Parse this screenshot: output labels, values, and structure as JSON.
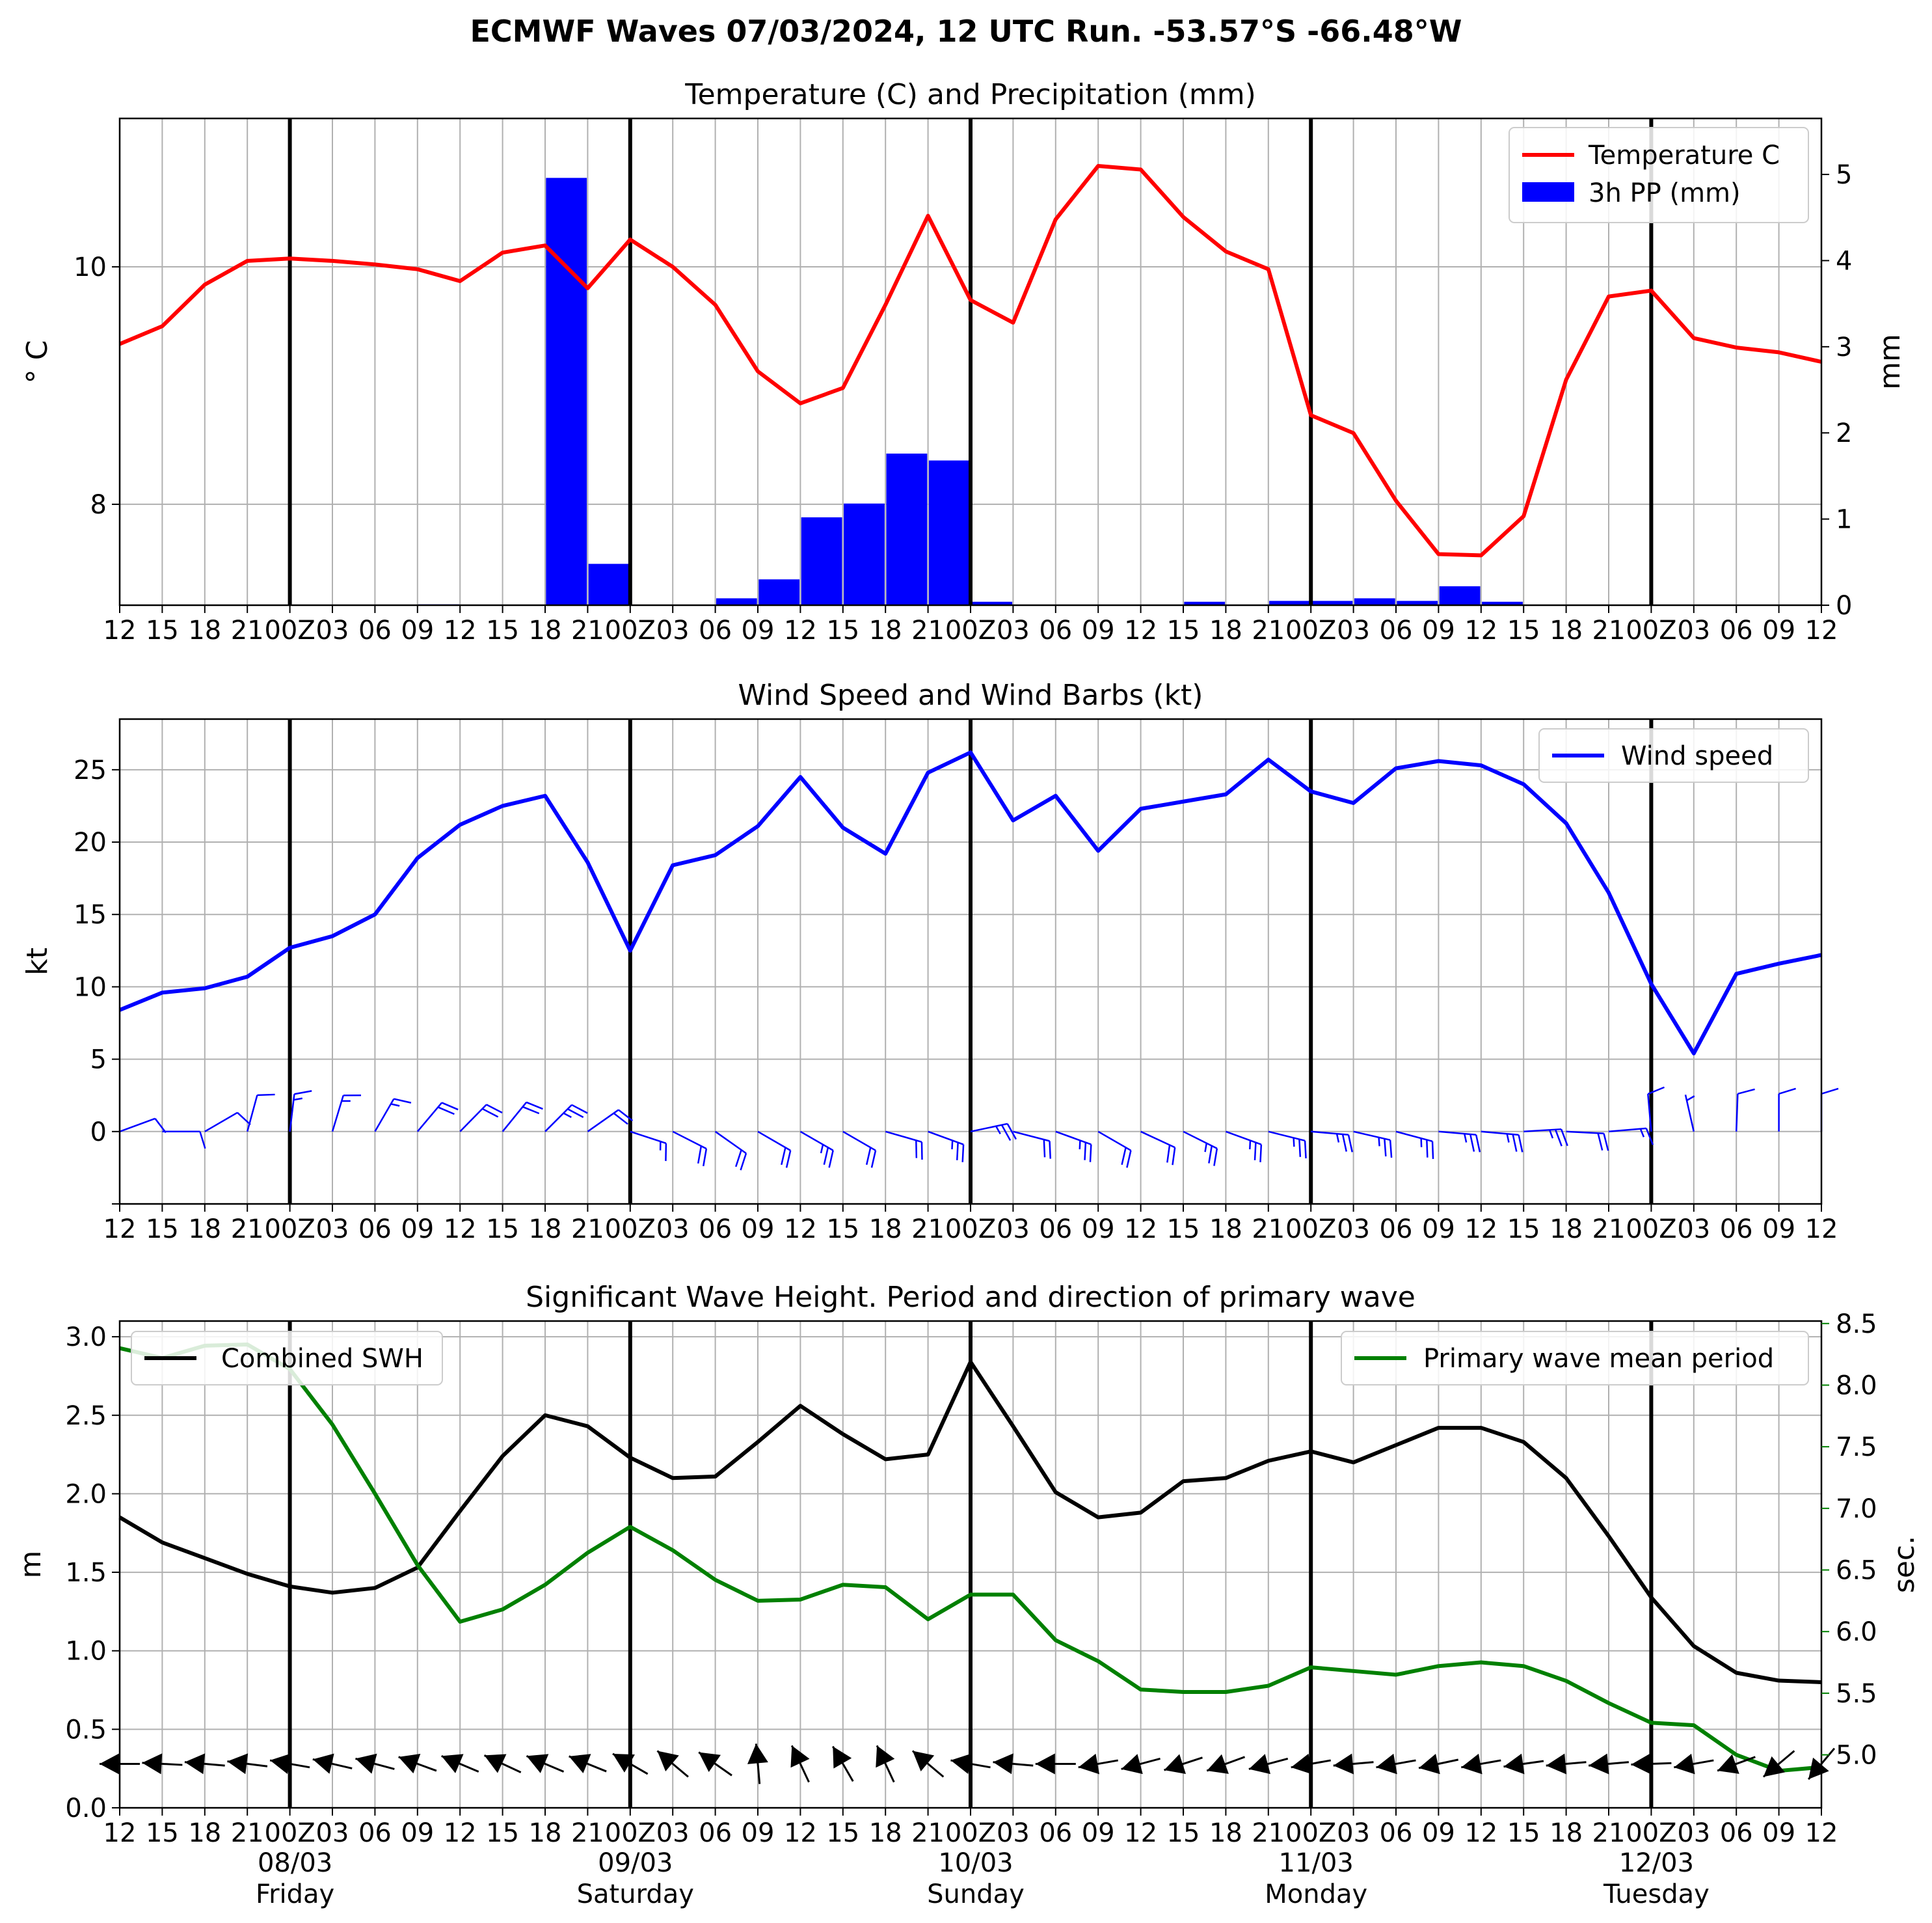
{
  "figure": {
    "suptitle": "ECMWF Waves 07/03/2024, 12 UTC Run. -53.57°S -66.48°W"
  },
  "time_axis": {
    "tick_labels": [
      "12",
      "15",
      "18",
      "21",
      "00Z",
      "03",
      "06",
      "09",
      "12",
      "15",
      "18",
      "21",
      "00Z",
      "03",
      "06",
      "09",
      "12",
      "15",
      "18",
      "21",
      "00Z",
      "03",
      "06",
      "09",
      "12",
      "15",
      "18",
      "21",
      "00Z",
      "03",
      "06",
      "09",
      "12",
      "15",
      "18",
      "21",
      "00Z",
      "03",
      "06",
      "09",
      "12"
    ],
    "day_labels": [
      {
        "date": "08/03",
        "day": "Friday",
        "index": 4
      },
      {
        "date": "09/03",
        "day": "Saturday",
        "index": 12
      },
      {
        "date": "10/03",
        "day": "Sunday",
        "index": 20
      },
      {
        "date": "11/03",
        "day": "Monday",
        "index": 28
      },
      {
        "date": "12/03",
        "day": "Tuesday",
        "index": 36
      }
    ],
    "day_boundaries": [
      4,
      12,
      20,
      28,
      36
    ]
  },
  "chart_data": [
    {
      "type": "line",
      "title": "Temperature (C) and Precipitation (mm)",
      "ylabel": "$^\\circ$C",
      "ylabel_display": "° C",
      "y2label": "mm",
      "ylim": [
        7.15,
        11.25
      ],
      "yticks": [
        8,
        10
      ],
      "y2lim": [
        0,
        5.65
      ],
      "y2ticks": [
        0,
        1,
        2,
        3,
        4,
        5
      ],
      "legend_position": "upper right",
      "series": [
        {
          "name": "Temperature C",
          "kind": "line",
          "axis": "left",
          "color": "#ff0000",
          "values": [
            9.35,
            9.5,
            9.85,
            10.05,
            10.07,
            10.05,
            10.02,
            9.98,
            9.88,
            10.12,
            10.18,
            9.82,
            10.23,
            10.0,
            9.68,
            9.12,
            8.85,
            8.98,
            9.68,
            10.43,
            9.72,
            9.53,
            10.4,
            10.85,
            10.82,
            10.42,
            10.13,
            9.98,
            8.75,
            8.6,
            8.03,
            7.58,
            7.57,
            7.9,
            9.05,
            9.75,
            9.8,
            9.4,
            9.32,
            9.28,
            9.2
          ]
        },
        {
          "name": "3h PP (mm)",
          "kind": "bar",
          "axis": "right",
          "color": "#0000ff",
          "values": [
            0,
            0,
            0,
            0,
            0,
            0,
            0,
            0.01,
            0,
            0,
            4.96,
            0.48,
            0,
            0,
            0.08,
            0.3,
            1.02,
            1.18,
            1.76,
            1.68,
            0.04,
            0,
            0,
            0,
            0,
            0.04,
            0,
            0.05,
            0.05,
            0.08,
            0.05,
            0.22,
            0.04,
            0,
            0,
            0,
            0,
            0,
            0,
            0
          ]
        }
      ]
    },
    {
      "type": "line",
      "title": "Wind Speed and Wind Barbs (kt)",
      "ylabel": "kt",
      "ylim": [
        -5,
        28.5
      ],
      "yticks": [
        0,
        5,
        10,
        15,
        20,
        25
      ],
      "legend_position": "upper right",
      "series": [
        {
          "name": "Wind speed",
          "kind": "line",
          "color": "#0000ff",
          "values": [
            8.4,
            9.6,
            9.9,
            10.7,
            12.7,
            13.5,
            15.0,
            18.9,
            21.2,
            22.5,
            23.2,
            18.6,
            12.5,
            18.4,
            19.1,
            21.1,
            24.5,
            21.0,
            19.2,
            24.8,
            26.2,
            21.5,
            23.2,
            19.4,
            22.3,
            22.8,
            23.3,
            25.7,
            23.5,
            22.7,
            25.1,
            25.6,
            25.3,
            24.0,
            21.3,
            16.5,
            10.2,
            5.4,
            10.9,
            11.6,
            12.2
          ]
        },
        {
          "name": "",
          "kind": "barbs",
          "color": "#0000ff",
          "u": [
            -7.9,
            -9.4,
            -8.6,
            -2.8,
            -1.5,
            -3.9,
            -7.5,
            -12.3,
            -14.9,
            -14.0,
            -16.4,
            -14.8,
            -11.9,
            -16.7,
            -15.6,
            -18.3,
            -21.2,
            -18.2,
            -17.8,
            -23.3,
            -25.6,
            -20.8,
            -21.8,
            -16.8,
            -20.2,
            -20.4,
            -21.9,
            -24.9,
            -23.4,
            -22.6,
            -24.3,
            -25.5,
            -25.3,
            -24.0,
            -21.3,
            -16.5,
            0.9,
            1.2,
            -0.4,
            0.0,
            0.0
          ],
          "v": [
            -2.9,
            0.0,
            -5.0,
            -10.3,
            -12.6,
            -12.9,
            -13.0,
            -14.6,
            -15.2,
            -17.2,
            -16.4,
            -10.4,
            3.9,
            8.5,
            11.0,
            10.6,
            12.2,
            10.5,
            5.1,
            8.5,
            -5.4,
            5.4,
            7.9,
            9.7,
            9.4,
            10.2,
            8.0,
            6.2,
            2.0,
            5.2,
            6.5,
            2.2,
            2.2,
            -1.5,
            1.1,
            -1.4,
            -10.2,
            -5.3,
            -10.9,
            -11.6,
            -12.2
          ]
        }
      ]
    },
    {
      "type": "line",
      "title": "Significant Wave Height. Period and direction of primary wave",
      "ylabel": "m",
      "y2label": "sec.",
      "ylim": [
        0,
        3.1
      ],
      "yticks": [
        0.0,
        0.5,
        1.0,
        1.5,
        2.0,
        2.5,
        3.0
      ],
      "y2lim": [
        4.57,
        8.52
      ],
      "y2ticks": [
        5.0,
        5.5,
        6.0,
        6.5,
        7.0,
        7.5,
        8.0,
        8.5
      ],
      "legend_positions": {
        "Combined SWH": "upper left",
        "Primary wave mean period": "upper right"
      },
      "series": [
        {
          "name": "Combined SWH",
          "kind": "line",
          "axis": "left",
          "color": "#000000",
          "values": [
            1.85,
            1.69,
            1.59,
            1.49,
            1.41,
            1.37,
            1.4,
            1.53,
            1.89,
            2.24,
            2.5,
            2.43,
            2.23,
            2.1,
            2.11,
            2.33,
            2.56,
            2.38,
            2.22,
            2.25,
            2.84,
            2.43,
            2.01,
            1.85,
            1.88,
            2.08,
            2.1,
            2.21,
            2.27,
            2.2,
            2.31,
            2.42,
            2.42,
            2.33,
            2.1,
            1.73,
            1.34,
            1.03,
            0.86,
            0.81,
            0.8
          ]
        },
        {
          "name": "Primary wave mean period",
          "kind": "line",
          "axis": "right",
          "color": "#008000",
          "values": [
            8.3,
            8.22,
            8.32,
            8.33,
            8.13,
            7.68,
            7.12,
            6.54,
            6.08,
            6.18,
            6.38,
            6.64,
            6.85,
            6.66,
            6.42,
            6.25,
            6.26,
            6.38,
            6.36,
            6.1,
            6.3,
            6.3,
            5.93,
            5.76,
            5.53,
            5.51,
            5.51,
            5.56,
            5.71,
            5.68,
            5.65,
            5.72,
            5.75,
            5.72,
            5.6,
            5.42,
            5.26,
            5.24,
            5.0,
            4.87,
            4.9
          ]
        },
        {
          "name": "",
          "kind": "direction_arrows",
          "color": "#000000",
          "angle_deg": [
            180,
            183,
            185,
            187,
            190,
            193,
            195,
            200,
            203,
            205,
            203,
            202,
            210,
            220,
            215,
            265,
            245,
            240,
            245,
            220,
            190,
            185,
            180,
            170,
            165,
            162,
            160,
            165,
            170,
            175,
            170,
            168,
            170,
            172,
            175,
            175,
            178,
            170,
            160,
            140,
            130
          ]
        }
      ]
    }
  ]
}
